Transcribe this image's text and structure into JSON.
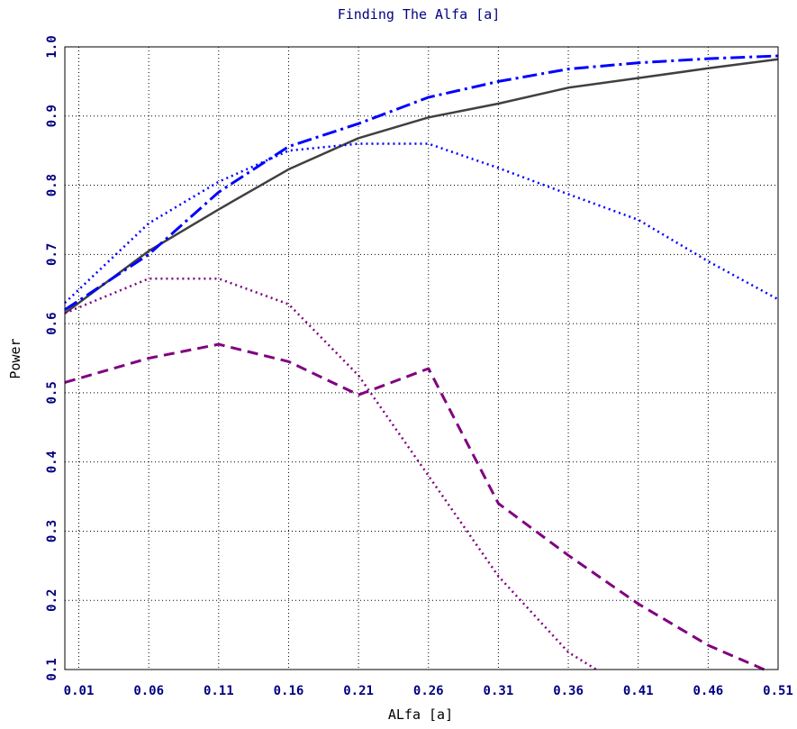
{
  "chart_data": {
    "type": "line",
    "title": "Finding The Alfa [a]",
    "xlabel": "ALfa [a]",
    "ylabel": "Power",
    "xlim": [
      0.0,
      0.51
    ],
    "ylim": [
      0.1,
      1.0
    ],
    "x_ticks": [
      0.01,
      0.06,
      0.11,
      0.16,
      0.21,
      0.26,
      0.31,
      0.36,
      0.41,
      0.46,
      0.51
    ],
    "x_tick_labels": [
      "0.01",
      "0.06",
      "0.11",
      "0.16",
      "0.21",
      "0.26",
      "0.31",
      "0.36",
      "0.41",
      "0.46",
      "0.51"
    ],
    "y_ticks": [
      0.1,
      0.2,
      0.3,
      0.4,
      0.5,
      0.6,
      0.7,
      0.8,
      0.9,
      1.0
    ],
    "y_tick_labels": [
      "0.1",
      "0.2",
      "0.3",
      "0.4",
      "0.5",
      "0.6",
      "0.7",
      "0.8",
      "0.9",
      "1.0"
    ],
    "grid": true,
    "series": [
      {
        "style": "solid",
        "color": "#404040",
        "x": [
          0.0,
          0.06,
          0.11,
          0.16,
          0.21,
          0.26,
          0.31,
          0.36,
          0.41,
          0.46,
          0.51
        ],
        "y": [
          0.615,
          0.705,
          0.765,
          0.823,
          0.868,
          0.898,
          0.918,
          0.941,
          0.955,
          0.969,
          0.982
        ]
      },
      {
        "style": "dashdot",
        "color": "#0000ff",
        "x": [
          0.0,
          0.06,
          0.11,
          0.16,
          0.21,
          0.26,
          0.31,
          0.36,
          0.41,
          0.46,
          0.51
        ],
        "y": [
          0.62,
          0.7,
          0.79,
          0.856,
          0.889,
          0.927,
          0.95,
          0.968,
          0.977,
          0.983,
          0.987
        ]
      },
      {
        "style": "dotted",
        "color": "#0000ff",
        "x": [
          0.0,
          0.06,
          0.11,
          0.16,
          0.21,
          0.26,
          0.31,
          0.36,
          0.41,
          0.46,
          0.51
        ],
        "y": [
          0.63,
          0.745,
          0.805,
          0.85,
          0.86,
          0.86,
          0.825,
          0.787,
          0.75,
          0.69,
          0.635
        ]
      },
      {
        "style": "dotted",
        "color": "#800080",
        "x": [
          0.0,
          0.06,
          0.11,
          0.16,
          0.21,
          0.26,
          0.31,
          0.36,
          0.38
        ],
        "y": [
          0.615,
          0.665,
          0.665,
          0.628,
          0.525,
          0.38,
          0.235,
          0.125,
          0.1
        ]
      },
      {
        "style": "dashed",
        "color": "#800080",
        "x": [
          0.0,
          0.06,
          0.11,
          0.16,
          0.21,
          0.26,
          0.31,
          0.36,
          0.41,
          0.46,
          0.5
        ],
        "y": [
          0.515,
          0.55,
          0.57,
          0.545,
          0.497,
          0.535,
          0.34,
          0.265,
          0.195,
          0.135,
          0.1
        ]
      }
    ]
  },
  "colors": {
    "title": "#000080",
    "tick_label": "#000080",
    "axis_title": "#000000",
    "grid": "#000000",
    "frame": "#000000"
  }
}
